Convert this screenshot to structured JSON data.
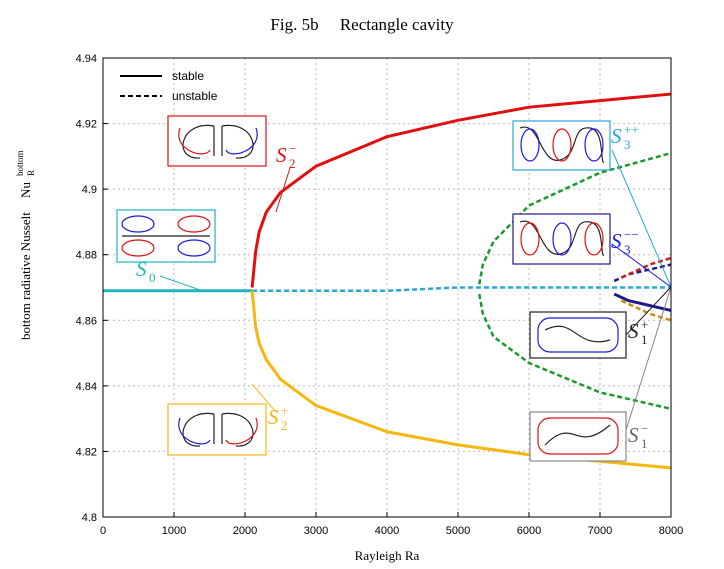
{
  "chart_data": {
    "type": "line",
    "title": "Fig. 5b     Rectangle cavity",
    "xlabel": "Rayleigh Ra",
    "ylabel": "bottom radiative Nusselt",
    "ylabel_symbol": {
      "text": "Nu",
      "sub": "R",
      "sup": "bottom"
    },
    "xlim": [
      0,
      8000
    ],
    "ylim": [
      4.8,
      4.94
    ],
    "xticks": [
      0,
      1000,
      2000,
      3000,
      4000,
      5000,
      6000,
      7000,
      8000
    ],
    "yticks": [
      4.8,
      4.82,
      4.84,
      4.86,
      4.88,
      4.9,
      4.92,
      4.94
    ],
    "grid": true,
    "legend": [
      {
        "label": "stable",
        "style": "solid"
      },
      {
        "label": "unstable",
        "style": "dashed"
      }
    ],
    "series": [
      {
        "color": "#1fb5c4",
        "style": "solid",
        "x": [
          0,
          500,
          1000,
          1500,
          2000,
          2100
        ],
        "values": [
          4.869,
          4.869,
          4.869,
          4.869,
          4.869,
          4.869
        ]
      },
      {
        "color": "#2aa7d6",
        "style": "dashed",
        "x": [
          2100,
          3000,
          4000,
          5000,
          6000,
          7000,
          8000
        ],
        "values": [
          4.869,
          4.869,
          4.869,
          4.87,
          4.87,
          4.87,
          4.87
        ]
      },
      {
        "color": "#e01010",
        "style": "solid",
        "x": [
          2100,
          2150,
          2200,
          2300,
          2500,
          3000,
          4000,
          5000,
          6000,
          7000,
          8000
        ],
        "values": [
          4.87,
          4.881,
          4.887,
          4.893,
          4.899,
          4.907,
          4.916,
          4.921,
          4.925,
          4.927,
          4.929
        ]
      },
      {
        "color": "#f5b70f",
        "style": "solid",
        "x": [
          2100,
          2150,
          2200,
          2300,
          2500,
          3000,
          4000,
          5000,
          6000,
          7000,
          8000
        ],
        "values": [
          4.869,
          4.858,
          4.853,
          4.848,
          4.842,
          4.834,
          4.826,
          4.822,
          4.819,
          4.817,
          4.815
        ]
      },
      {
        "color": "#1a9a2a",
        "style": "dashed",
        "x": [
          5300,
          5350,
          5500,
          6000,
          7000,
          8000
        ],
        "values": [
          4.871,
          4.877,
          4.884,
          4.895,
          4.905,
          4.911
        ]
      },
      {
        "color": "#1a9a2a",
        "style": "dashed",
        "x": [
          5300,
          5350,
          5500,
          6000,
          7000,
          8000
        ],
        "values": [
          4.868,
          4.862,
          4.855,
          4.847,
          4.838,
          4.833
        ]
      },
      {
        "color": "#1a1a8a",
        "style": "dashed",
        "x": [
          7200,
          7400,
          7600,
          7800,
          8000
        ],
        "values": [
          4.872,
          4.874,
          4.875,
          4.876,
          4.877
        ]
      },
      {
        "color": "#cc2020",
        "style": "dashed",
        "x": [
          7300,
          7500,
          7700,
          8000
        ],
        "values": [
          4.873,
          4.875,
          4.877,
          4.879
        ]
      },
      {
        "color": "#1a1a8a",
        "style": "solid",
        "x": [
          7200,
          7400,
          7600,
          7800,
          8000
        ],
        "values": [
          4.868,
          4.866,
          4.865,
          4.864,
          4.863
        ]
      },
      {
        "color": "#d08a10",
        "style": "dashed",
        "x": [
          7300,
          7500,
          7700,
          8000
        ],
        "values": [
          4.866,
          4.864,
          4.862,
          4.86
        ]
      }
    ],
    "annotations": [
      {
        "text": "S",
        "sub": "2",
        "sup": "−"
      },
      {
        "text": "S",
        "sub": "2",
        "sup": "+"
      },
      {
        "text": "S",
        "sub": "0"
      },
      {
        "text": "S",
        "sub": "3",
        "sup": "++"
      },
      {
        "text": "S",
        "sub": "3",
        "sup": "−−"
      },
      {
        "text": "S",
        "sub": "1",
        "sup": "+"
      },
      {
        "text": "S",
        "sub": "1",
        "sup": "−"
      }
    ]
  }
}
